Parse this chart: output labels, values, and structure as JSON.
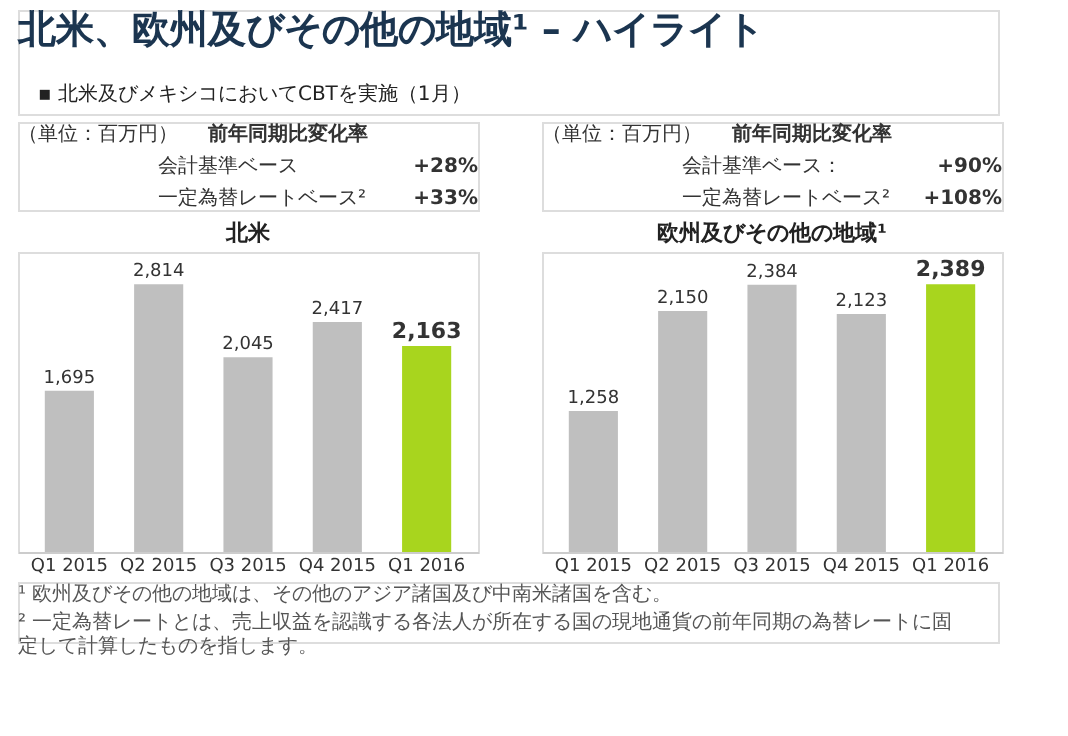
{
  "chart_data": [
    {
      "type": "bar",
      "title": "北米",
      "categories": [
        "Q1 2015",
        "Q2 2015",
        "Q3 2015",
        "Q4 2015",
        "Q1 2016"
      ],
      "values": [
        1695,
        2814,
        2045,
        2417,
        2163
      ],
      "value_labels": [
        "1,695",
        "2,814",
        "2,045",
        "2,417",
        "2,163"
      ],
      "colors": [
        "#bfbfbf",
        "#bfbfbf",
        "#bfbfbf",
        "#bfbfbf",
        "#a8d51e"
      ],
      "tick_labels": "x",
      "annotations": [
        "北米、欧州及びその他の地域¹ – ハイライト",
        "▪  北米及びメキシコにおいてCBTを実施（1月）",
        "（単位：百万円）",
        "前年同期比変化率",
        "会計基準ベース",
        "+28%",
        "一定為替レートベース²",
        "+33%"
      ]
    },
    {
      "type": "bar",
      "title": "欧州及びその他の地域¹",
      "categories": [
        "Q1 2015",
        "Q2 2015",
        "Q3 2015",
        "Q4 2015",
        "Q1 2016"
      ],
      "values": [
        1258,
        2150,
        2384,
        2123,
        2389
      ],
      "value_labels": [
        "1,258",
        "2,150",
        "2,384",
        "2,123",
        "2,389"
      ],
      "colors": [
        "#bfbfbf",
        "#bfbfbf",
        "#bfbfbf",
        "#bfbfbf",
        "#a8d51e"
      ],
      "tick_labels": "x",
      "annotations": [
        "（単位：百万円）",
        "前年同期比変化率",
        "会計基準ベース：",
        "+90%",
        "一定為替レートベース²",
        "+108%",
        "¹ 欧州及びその他の地域は、その他のアジア諸国及び中南米諸国を含む。",
        "² 一定為替レートとは、売上収益を認識する各法人が所在する国の現地通貨の前年同期の為替レートに固定して計算したものを指します。"
      ]
    }
  ]
}
